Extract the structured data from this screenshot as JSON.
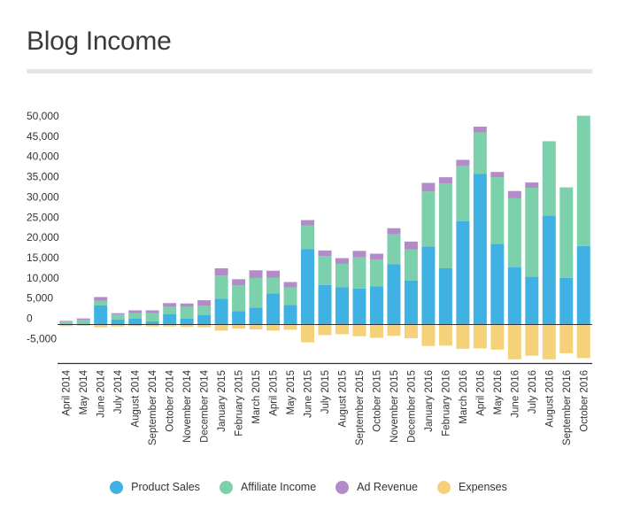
{
  "chart_data": {
    "type": "bar",
    "stacked": true,
    "title": "Blog Income",
    "xlabel": "",
    "ylabel": "",
    "ylim": [
      -10000,
      52500
    ],
    "yticks": [
      -5000,
      0,
      5000,
      10000,
      15000,
      20000,
      25000,
      30000,
      35000,
      40000,
      45000,
      50000
    ],
    "ytick_labels": [
      "-5,000",
      "0",
      "5,000",
      "10,000",
      "15,000",
      "20,000",
      "25,000",
      "30,000",
      "35,000",
      "40,000",
      "45,000",
      "50,000"
    ],
    "grid": false,
    "legend_position": "bottom",
    "categories": [
      "April 2014",
      "May 2014",
      "June 2014",
      "July 2014",
      "August 2014",
      "September 2014",
      "October 2014",
      "November 2014",
      "December 2014",
      "January 2015",
      "February 2015",
      "March 2015",
      "April 2015",
      "May 2015",
      "June 2015",
      "July 2015",
      "August 2015",
      "September 2015",
      "October 2015",
      "November 2015",
      "December 2015",
      "January 2016",
      "February 2016",
      "March 2016",
      "April 2016",
      "May 2016",
      "June 2016",
      "July 2016",
      "August 2016",
      "September 2016",
      "October 2016"
    ],
    "series": [
      {
        "name": "Product Sales",
        "color": "#3fb2e3",
        "values": [
          100,
          200,
          4700,
          1200,
          1500,
          800,
          2600,
          1500,
          2300,
          6400,
          3300,
          4200,
          7700,
          4800,
          18600,
          9800,
          9200,
          8900,
          9400,
          14900,
          10900,
          19300,
          13900,
          25500,
          37200,
          19900,
          14200,
          11800,
          26900,
          11500,
          19400
        ]
      },
      {
        "name": "Affiliate Income",
        "color": "#7dd0ac",
        "values": [
          600,
          1000,
          1200,
          1300,
          1300,
          2000,
          1800,
          2900,
          2400,
          5700,
          6400,
          7300,
          3900,
          4400,
          5900,
          7100,
          5800,
          7700,
          6700,
          7400,
          7700,
          13600,
          21000,
          13700,
          10300,
          16500,
          17000,
          22000,
          18400,
          22400,
          32200
        ]
      },
      {
        "name": "Ad Revenue",
        "color": "#b28bc8",
        "values": [
          200,
          300,
          900,
          300,
          700,
          700,
          900,
          800,
          1300,
          1800,
          1500,
          1900,
          1700,
          1300,
          1300,
          1400,
          1400,
          1600,
          1400,
          1500,
          1900,
          2100,
          1500,
          1500,
          1400,
          1300,
          1800,
          1300,
          0,
          0,
          0
        ]
      },
      {
        "name": "Expenses",
        "color": "#f5d27a",
        "values": [
          -400,
          -300,
          -700,
          -500,
          -400,
          -500,
          -500,
          -600,
          -700,
          -1500,
          -1000,
          -1200,
          -1500,
          -1300,
          -4400,
          -2600,
          -2400,
          -2900,
          -3300,
          -2800,
          -3400,
          -5300,
          -5200,
          -6000,
          -5900,
          -6200,
          -8600,
          -7700,
          -8600,
          -7100,
          -8300
        ]
      }
    ]
  }
}
